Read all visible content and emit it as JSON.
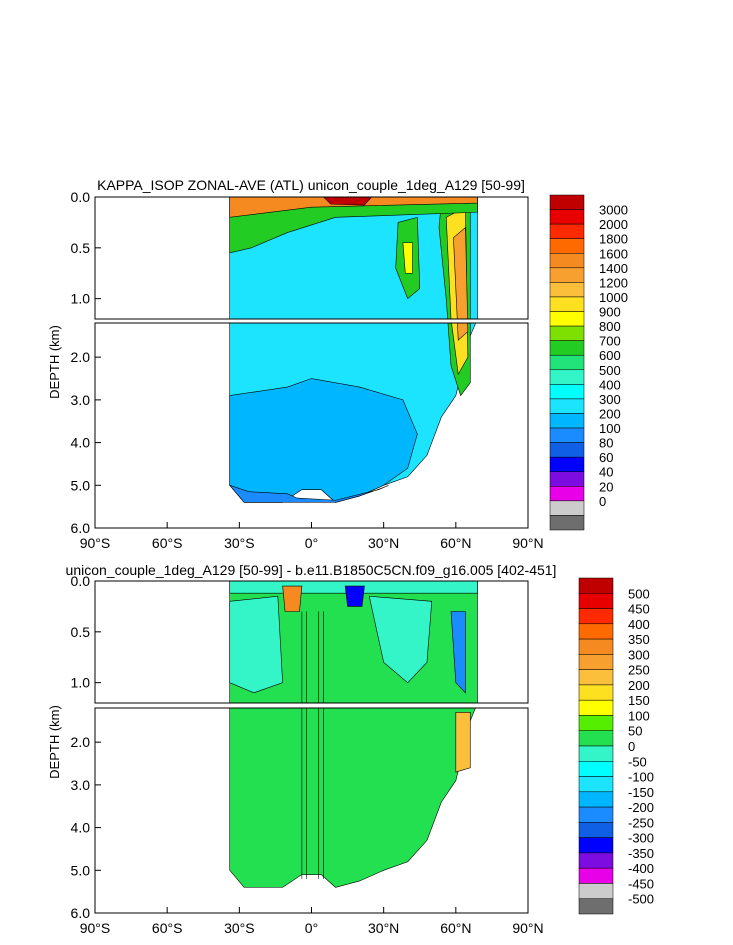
{
  "chart_data": [
    {
      "type": "contour",
      "title": "KAPPA_ISOP ZONAL-AVE (ATL) unicon_couple_1deg_A129 [50-99]",
      "ylabel": "DEPTH (km)",
      "xlabel": "",
      "x_ticks": [
        "90°S",
        "60°S",
        "30°S",
        "0°",
        "30°N",
        "60°N",
        "90°N"
      ],
      "x_tick_values": [
        -90,
        -60,
        -30,
        0,
        30,
        60,
        90
      ],
      "xlim": [
        -90,
        90
      ],
      "upper_panel": {
        "ylim": [
          0,
          1.2
        ],
        "y_ticks": [
          "0.0",
          "0.5",
          "1.0"
        ],
        "y_tick_values": [
          0,
          0.5,
          1.0
        ]
      },
      "lower_panel": {
        "ylim": [
          1.2,
          6.0
        ],
        "y_ticks": [
          "2.0",
          "3.0",
          "4.0",
          "5.0",
          "6.0"
        ],
        "y_tick_values": [
          2,
          3,
          4,
          5,
          6
        ]
      },
      "data_extent": {
        "lat_min": -34,
        "lat_max": 69,
        "max_depth_km": 5.4
      },
      "colorbar": {
        "labels": [
          "3000",
          "2000",
          "1800",
          "1600",
          "1400",
          "1200",
          "1000",
          "900",
          "800",
          "700",
          "600",
          "500",
          "400",
          "300",
          "200",
          "100",
          "80",
          "60",
          "40",
          "20",
          "0"
        ],
        "colors": [
          "#c00000",
          "#e80000",
          "#ff2a00",
          "#ff6a00",
          "#f58a20",
          "#f7a030",
          "#fcbf3c",
          "#fde020",
          "#ffff00",
          "#7ee000",
          "#22cc22",
          "#22e27a",
          "#33f5c8",
          "#00ffff",
          "#1ce4ff",
          "#00b6ff",
          "#1a8cff",
          "#1060e6",
          "#0000ff",
          "#7c0ce0",
          "#e800e8",
          "#cccccc",
          "#6e6e6e"
        ]
      },
      "field_colors": {
        "background": "#1ce4ff",
        "deep": "#00b6ff",
        "bottom": "#1a8cff",
        "surface_max": "#c00000"
      }
    },
    {
      "type": "contour",
      "title": "unicon_couple_1deg_A129 [50-99] - b.e11.B1850C5CN.f09_g16.005 [402-451]",
      "ylabel": "DEPTH (km)",
      "xlabel": "",
      "x_ticks": [
        "90°S",
        "60°S",
        "30°S",
        "0°",
        "30°N",
        "60°N",
        "90°N"
      ],
      "x_tick_values": [
        -90,
        -60,
        -30,
        0,
        30,
        60,
        90
      ],
      "xlim": [
        -90,
        90
      ],
      "upper_panel": {
        "ylim": [
          0,
          1.2
        ],
        "y_ticks": [
          "0.0",
          "0.5",
          "1.0"
        ],
        "y_tick_values": [
          0,
          0.5,
          1.0
        ]
      },
      "lower_panel": {
        "ylim": [
          1.2,
          6.0
        ],
        "y_ticks": [
          "2.0",
          "3.0",
          "4.0",
          "5.0",
          "6.0"
        ],
        "y_tick_values": [
          2,
          3,
          4,
          5,
          6
        ]
      },
      "data_extent": {
        "lat_min": -34,
        "lat_max": 69,
        "max_depth_km": 5.4
      },
      "colorbar": {
        "labels": [
          "500",
          "450",
          "400",
          "350",
          "300",
          "250",
          "200",
          "150",
          "100",
          "50",
          "0",
          "-50",
          "-100",
          "-150",
          "-200",
          "-250",
          "-300",
          "-350",
          "-400",
          "-450",
          "-500"
        ],
        "colors": [
          "#c00000",
          "#e80000",
          "#ff2a00",
          "#ff6a00",
          "#f58a20",
          "#f7a030",
          "#fcbf3c",
          "#fde020",
          "#ffff00",
          "#55ee00",
          "#22e050",
          "#33f5c8",
          "#00ffff",
          "#1ce4ff",
          "#00b6ff",
          "#1a8cff",
          "#1060e6",
          "#0000ff",
          "#7c0ce0",
          "#e800e8",
          "#cccccc",
          "#6e6e6e"
        ]
      },
      "field_colors": {
        "background": "#22e050",
        "negative": "#33f5c8",
        "positive": "#fcbf3c"
      }
    }
  ]
}
